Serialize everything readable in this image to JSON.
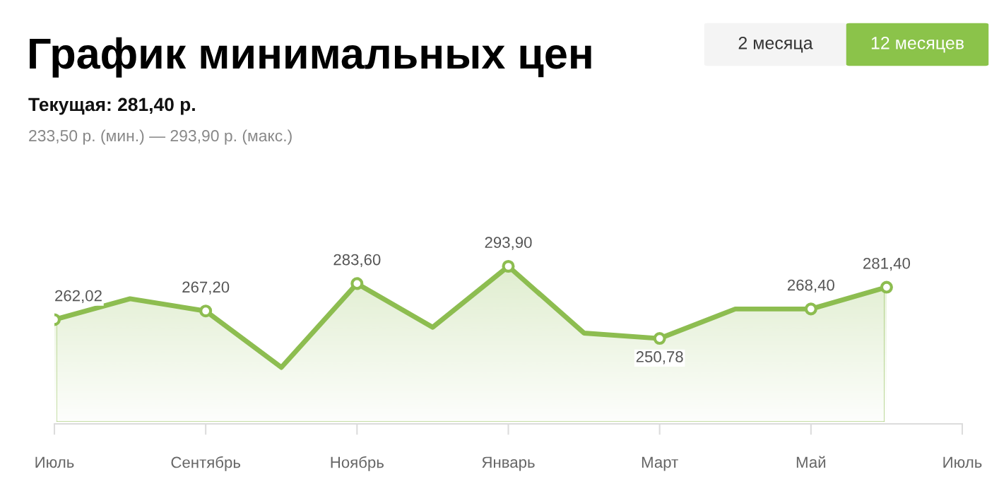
{
  "chart_data": {
    "type": "area",
    "title": "График минимальных цен",
    "subtitle": "Текущая: 281,40 р.",
    "annotations": [
      "233,50 р. (мин.) — 293,90 р. (макс.)",
      "2 месяца",
      "12 месяцев"
    ],
    "categories": [
      "Июль",
      null,
      "Сентябрь",
      null,
      "Ноябрь",
      null,
      "Январь",
      null,
      "Март",
      null,
      "Май",
      null,
      "Июль"
    ],
    "series": [
      {
        "color": "#8dbd50",
        "values": [
          262.02,
          274.5,
          267.2,
          233.5,
          283.6,
          257.5,
          293.9,
          254,
          250.78,
          268.4,
          268.4,
          281.4,
          null
        ]
      },
      {
        "type": "scatter",
        "marker": "circle",
        "color": "#8dbd50",
        "values": [
          262.02,
          null,
          267.2,
          null,
          283.6,
          null,
          293.9,
          null,
          250.78,
          null,
          268.4,
          281.4,
          null
        ],
        "value_labels": [
          "262,02",
          null,
          "267,20",
          null,
          "283,60",
          null,
          "293,90",
          null,
          "250,78",
          null,
          "268,40",
          "281,40",
          null
        ]
      }
    ]
  }
}
